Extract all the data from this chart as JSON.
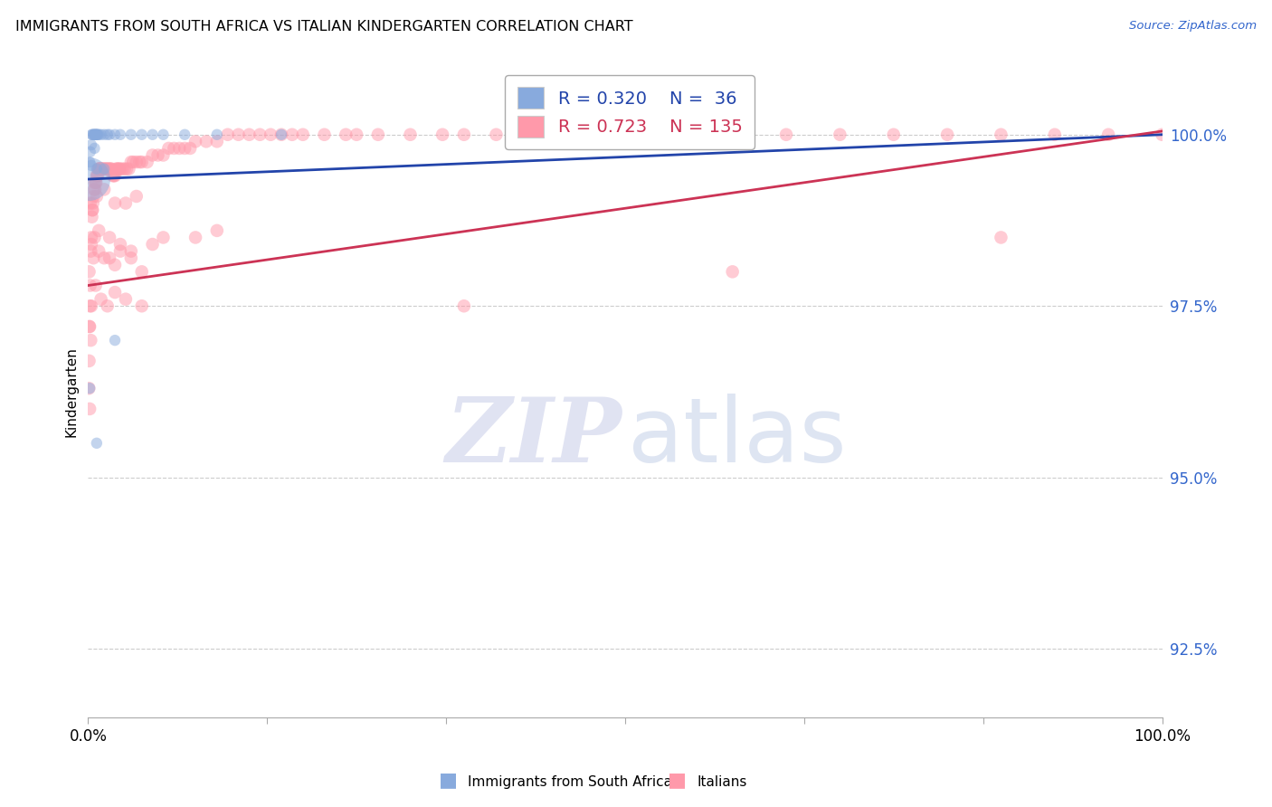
{
  "title": "IMMIGRANTS FROM SOUTH AFRICA VS ITALIAN KINDERGARTEN CORRELATION CHART",
  "source": "Source: ZipAtlas.com",
  "ylabel": "Kindergarten",
  "yticks": [
    92.5,
    95.0,
    97.5,
    100.0
  ],
  "ytick_labels": [
    "92.5%",
    "95.0%",
    "97.5%",
    "100.0%"
  ],
  "blue_R": 0.32,
  "blue_N": 36,
  "pink_R": 0.723,
  "pink_N": 135,
  "blue_color": "#88AADD",
  "pink_color": "#FF99AA",
  "blue_line_color": "#2244AA",
  "pink_line_color": "#CC3355",
  "legend_label_blue": "Immigrants from South Africa",
  "legend_label_pink": "Italians",
  "blue_scatter": [
    [
      0.05,
      99.35
    ],
    [
      0.15,
      99.6
    ],
    [
      0.2,
      99.75
    ],
    [
      0.3,
      99.85
    ],
    [
      0.35,
      100.0
    ],
    [
      0.4,
      100.0
    ],
    [
      0.5,
      100.0
    ],
    [
      0.55,
      100.0
    ],
    [
      0.6,
      100.0
    ],
    [
      0.65,
      100.0
    ],
    [
      0.7,
      100.0
    ],
    [
      0.75,
      100.0
    ],
    [
      0.8,
      100.0
    ],
    [
      0.85,
      100.0
    ],
    [
      0.9,
      100.0
    ],
    [
      1.0,
      100.0
    ],
    [
      1.2,
      100.0
    ],
    [
      1.5,
      100.0
    ],
    [
      1.8,
      100.0
    ],
    [
      2.0,
      100.0
    ],
    [
      2.5,
      100.0
    ],
    [
      3.0,
      100.0
    ],
    [
      4.0,
      100.0
    ],
    [
      5.0,
      100.0
    ],
    [
      6.0,
      100.0
    ],
    [
      7.0,
      100.0
    ],
    [
      9.0,
      100.0
    ],
    [
      12.0,
      100.0
    ],
    [
      18.0,
      100.0
    ],
    [
      0.3,
      99.55
    ],
    [
      0.8,
      99.5
    ],
    [
      1.5,
      99.5
    ],
    [
      2.5,
      97.0
    ],
    [
      0.8,
      95.5
    ],
    [
      0.15,
      96.3
    ],
    [
      0.6,
      99.8
    ]
  ],
  "blue_sizes": [
    1200,
    80,
    80,
    80,
    80,
    80,
    80,
    80,
    80,
    80,
    80,
    80,
    80,
    80,
    80,
    80,
    80,
    80,
    80,
    80,
    80,
    80,
    80,
    80,
    80,
    80,
    80,
    80,
    80,
    80,
    80,
    80,
    80,
    80,
    80,
    80
  ],
  "pink_scatter": [
    [
      0.08,
      96.3
    ],
    [
      0.1,
      96.7
    ],
    [
      0.12,
      97.2
    ],
    [
      0.15,
      96.0
    ],
    [
      0.18,
      97.5
    ],
    [
      0.2,
      97.8
    ],
    [
      0.25,
      98.3
    ],
    [
      0.3,
      98.5
    ],
    [
      0.35,
      98.8
    ],
    [
      0.4,
      98.9
    ],
    [
      0.45,
      99.0
    ],
    [
      0.5,
      99.1
    ],
    [
      0.55,
      99.2
    ],
    [
      0.6,
      99.3
    ],
    [
      0.65,
      99.2
    ],
    [
      0.7,
      99.3
    ],
    [
      0.75,
      99.3
    ],
    [
      0.8,
      99.4
    ],
    [
      0.85,
      99.4
    ],
    [
      0.9,
      99.4
    ],
    [
      0.95,
      99.5
    ],
    [
      1.0,
      99.5
    ],
    [
      1.05,
      99.5
    ],
    [
      1.1,
      99.5
    ],
    [
      1.15,
      99.5
    ],
    [
      1.2,
      99.5
    ],
    [
      1.3,
      99.5
    ],
    [
      1.4,
      99.5
    ],
    [
      1.5,
      99.5
    ],
    [
      1.6,
      99.5
    ],
    [
      1.7,
      99.5
    ],
    [
      1.8,
      99.5
    ],
    [
      1.9,
      99.5
    ],
    [
      2.0,
      99.5
    ],
    [
      2.1,
      99.5
    ],
    [
      2.2,
      99.5
    ],
    [
      2.3,
      99.4
    ],
    [
      2.4,
      99.4
    ],
    [
      2.5,
      99.4
    ],
    [
      2.6,
      99.5
    ],
    [
      2.7,
      99.5
    ],
    [
      2.8,
      99.5
    ],
    [
      2.9,
      99.5
    ],
    [
      3.0,
      99.5
    ],
    [
      3.2,
      99.5
    ],
    [
      3.4,
      99.5
    ],
    [
      3.6,
      99.5
    ],
    [
      3.8,
      99.5
    ],
    [
      4.0,
      99.6
    ],
    [
      4.2,
      99.6
    ],
    [
      4.5,
      99.6
    ],
    [
      4.8,
      99.6
    ],
    [
      5.0,
      99.6
    ],
    [
      5.5,
      99.6
    ],
    [
      6.0,
      99.7
    ],
    [
      6.5,
      99.7
    ],
    [
      7.0,
      99.7
    ],
    [
      7.5,
      99.8
    ],
    [
      8.0,
      99.8
    ],
    [
      8.5,
      99.8
    ],
    [
      9.0,
      99.8
    ],
    [
      9.5,
      99.8
    ],
    [
      10.0,
      99.9
    ],
    [
      11.0,
      99.9
    ],
    [
      12.0,
      99.9
    ],
    [
      13.0,
      100.0
    ],
    [
      14.0,
      100.0
    ],
    [
      15.0,
      100.0
    ],
    [
      16.0,
      100.0
    ],
    [
      17.0,
      100.0
    ],
    [
      18.0,
      100.0
    ],
    [
      19.0,
      100.0
    ],
    [
      20.0,
      100.0
    ],
    [
      22.0,
      100.0
    ],
    [
      24.0,
      100.0
    ],
    [
      25.0,
      100.0
    ],
    [
      27.0,
      100.0
    ],
    [
      30.0,
      100.0
    ],
    [
      33.0,
      100.0
    ],
    [
      35.0,
      100.0
    ],
    [
      38.0,
      100.0
    ],
    [
      40.0,
      100.0
    ],
    [
      42.0,
      100.0
    ],
    [
      45.0,
      100.0
    ],
    [
      48.0,
      100.0
    ],
    [
      50.0,
      100.0
    ],
    [
      55.0,
      100.0
    ],
    [
      60.0,
      100.0
    ],
    [
      65.0,
      100.0
    ],
    [
      70.0,
      100.0
    ],
    [
      75.0,
      100.0
    ],
    [
      80.0,
      100.0
    ],
    [
      85.0,
      100.0
    ],
    [
      90.0,
      100.0
    ],
    [
      95.0,
      100.0
    ],
    [
      100.0,
      100.0
    ],
    [
      0.5,
      98.2
    ],
    [
      1.0,
      98.3
    ],
    [
      1.5,
      98.2
    ],
    [
      2.0,
      98.2
    ],
    [
      2.5,
      98.1
    ],
    [
      3.0,
      98.3
    ],
    [
      4.0,
      98.2
    ],
    [
      5.0,
      98.0
    ],
    [
      0.3,
      97.5
    ],
    [
      0.7,
      97.8
    ],
    [
      1.2,
      97.6
    ],
    [
      1.8,
      97.5
    ],
    [
      2.5,
      97.7
    ],
    [
      3.5,
      97.6
    ],
    [
      5.0,
      97.5
    ],
    [
      35.0,
      97.5
    ],
    [
      60.0,
      98.0
    ],
    [
      85.0,
      98.5
    ],
    [
      0.2,
      99.0
    ],
    [
      0.4,
      98.9
    ],
    [
      0.8,
      99.1
    ],
    [
      1.5,
      99.2
    ],
    [
      2.5,
      99.0
    ],
    [
      3.5,
      99.0
    ],
    [
      4.5,
      99.1
    ],
    [
      0.6,
      98.5
    ],
    [
      1.0,
      98.6
    ],
    [
      2.0,
      98.5
    ],
    [
      3.0,
      98.4
    ],
    [
      4.0,
      98.3
    ],
    [
      6.0,
      98.4
    ],
    [
      0.15,
      97.2
    ],
    [
      0.25,
      97.0
    ],
    [
      7.0,
      98.5
    ],
    [
      10.0,
      98.5
    ],
    [
      12.0,
      98.6
    ],
    [
      0.1,
      98.0
    ],
    [
      0.3,
      98.4
    ]
  ],
  "xlim": [
    0,
    100
  ],
  "ylim": [
    91.5,
    101.0
  ],
  "blue_trend_start_y": 99.35,
  "blue_trend_end_y": 100.0,
  "pink_trend_start_y": 97.8,
  "pink_trend_end_y": 100.05
}
